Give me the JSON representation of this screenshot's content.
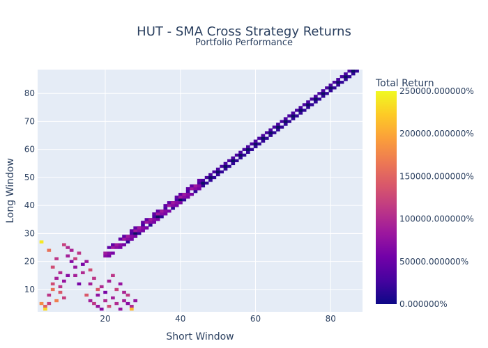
{
  "chart_data": {
    "type": "heatmap",
    "title": "HUT - SMA Cross Strategy Returns",
    "subtitle": "Portfolio Performance",
    "xlabel": "Short Window",
    "ylabel": "Long Window",
    "xlim": [
      2,
      88.5
    ],
    "ylim": [
      2,
      88.5
    ],
    "x_ticks": [
      20,
      40,
      60,
      80
    ],
    "y_ticks": [
      10,
      20,
      30,
      40,
      50,
      60,
      70,
      80
    ],
    "grid": true,
    "colorbar": {
      "title": "Total Return",
      "min": 0,
      "max": 250000,
      "ticks": [
        {
          "value": 250000,
          "label": "250000.000000%"
        },
        {
          "value": 200000,
          "label": "200000.000000%"
        },
        {
          "value": 150000,
          "label": "150000.000000%"
        },
        {
          "value": 100000,
          "label": "100000.000000%"
        },
        {
          "value": 50000,
          "label": "50000.000000%"
        },
        {
          "value": 0,
          "label": "0.000000%"
        }
      ],
      "colorscale": [
        "#0d0887",
        "#46039f",
        "#7201a8",
        "#9c179e",
        "#bd3786",
        "#d8576b",
        "#ed7953",
        "#fb9f3a",
        "#fdca26",
        "#f0f921"
      ]
    },
    "series": [
      {
        "description_units": "cells [short_window, long_window, total_return_percent]",
        "diagonal_band": {
          "short_range": [
            25,
            88
          ],
          "offsets": [
            1,
            2,
            3
          ],
          "values": [
            18000,
            9000,
            30000
          ]
        },
        "mid_band": {
          "short_range": [
            20,
            45
          ],
          "offsets": [
            1,
            2,
            3,
            4
          ],
          "values": [
            60000,
            70000,
            85000,
            45000
          ]
        },
        "cluster_cells": [
          [
            3,
            27,
            240000
          ],
          [
            3,
            5,
            180000
          ],
          [
            4,
            4,
            150000
          ],
          [
            4,
            3,
            230000
          ],
          [
            5,
            5,
            120000
          ],
          [
            5,
            8,
            110000
          ],
          [
            6,
            10,
            160000
          ],
          [
            6,
            12,
            130000
          ],
          [
            7,
            14,
            90000
          ],
          [
            7,
            6,
            170000
          ],
          [
            8,
            9,
            140000
          ],
          [
            8,
            11,
            110000
          ],
          [
            9,
            13,
            80000
          ],
          [
            9,
            7,
            120000
          ],
          [
            10,
            15,
            70000
          ],
          [
            10,
            22,
            90000
          ],
          [
            11,
            24,
            95000
          ],
          [
            12,
            21,
            120000
          ],
          [
            12,
            18,
            80000
          ],
          [
            13,
            23,
            110000
          ],
          [
            14,
            19,
            60000
          ],
          [
            14,
            16,
            100000
          ],
          [
            15,
            20,
            85000
          ],
          [
            16,
            17,
            130000
          ],
          [
            16,
            12,
            90000
          ],
          [
            17,
            14,
            110000
          ],
          [
            18,
            10,
            140000
          ],
          [
            18,
            8,
            75000
          ],
          [
            19,
            11,
            100000
          ],
          [
            20,
            9,
            60000
          ],
          [
            21,
            13,
            90000
          ],
          [
            22,
            15,
            110000
          ],
          [
            23,
            10,
            120000
          ],
          [
            24,
            12,
            80000
          ],
          [
            25,
            9,
            95000
          ],
          [
            26,
            5,
            70000
          ],
          [
            27,
            4,
            100000
          ],
          [
            28,
            6,
            80000
          ],
          [
            27,
            3,
            210000
          ],
          [
            9,
            26,
            120000
          ],
          [
            10,
            25,
            100000
          ],
          [
            11,
            20,
            70000
          ],
          [
            12,
            15,
            90000
          ],
          [
            13,
            12,
            60000
          ],
          [
            6,
            18,
            130000
          ],
          [
            5,
            24,
            160000
          ],
          [
            7,
            21,
            110000
          ],
          [
            8,
            16,
            100000
          ],
          [
            15,
            8,
            140000
          ],
          [
            16,
            6,
            90000
          ],
          [
            17,
            5,
            110000
          ],
          [
            18,
            4,
            80000
          ],
          [
            19,
            3,
            70000
          ],
          [
            20,
            6,
            100000
          ],
          [
            21,
            4,
            130000
          ],
          [
            22,
            7,
            90000
          ],
          [
            23,
            5,
            100000
          ],
          [
            24,
            3,
            80000
          ],
          [
            25,
            6,
            90000
          ],
          [
            26,
            8,
            110000
          ]
        ]
      }
    ]
  }
}
